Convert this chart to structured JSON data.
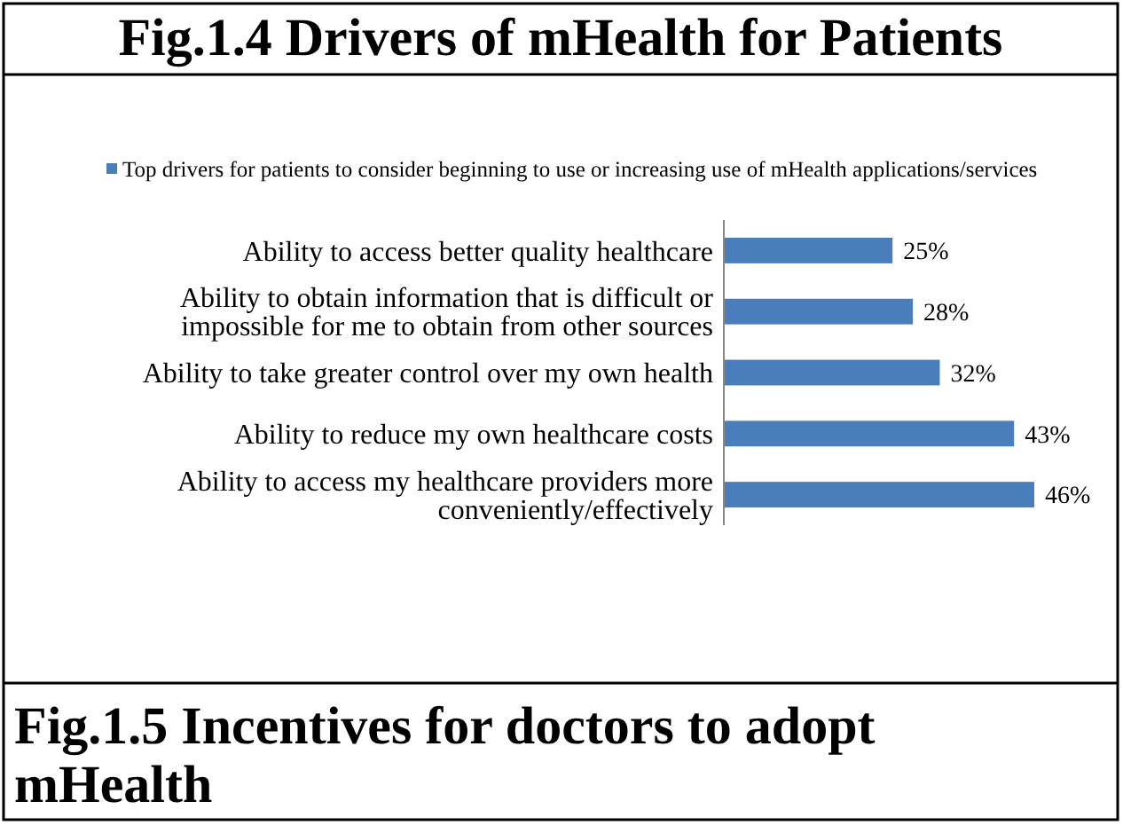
{
  "chart_data": {
    "type": "bar",
    "orientation": "horizontal",
    "title": "Fig.1.4 Drivers of mHealth for Patients",
    "categories": [
      "Ability to access better quality healthcare",
      "Ability to obtain information that is difficult or impossible for me to obtain from other sources",
      "Ability to take greater control over my own health",
      "Ability to reduce my own healthcare costs",
      "Ability to access my healthcare providers more conveniently/effectively"
    ],
    "series": [
      {
        "name": "Top drivers for patients to consider beginning to use or increasing use of mHealth applications/services",
        "color": "#4a7ebb",
        "values": [
          25,
          28,
          32,
          43,
          46
        ],
        "value_labels": [
          "25%",
          "28%",
          "32%",
          "43%",
          "46%"
        ]
      }
    ],
    "legend": "top",
    "annotations": [
      "Fig.1.5 Incentives for doctors to adopt mHealth"
    ]
  }
}
